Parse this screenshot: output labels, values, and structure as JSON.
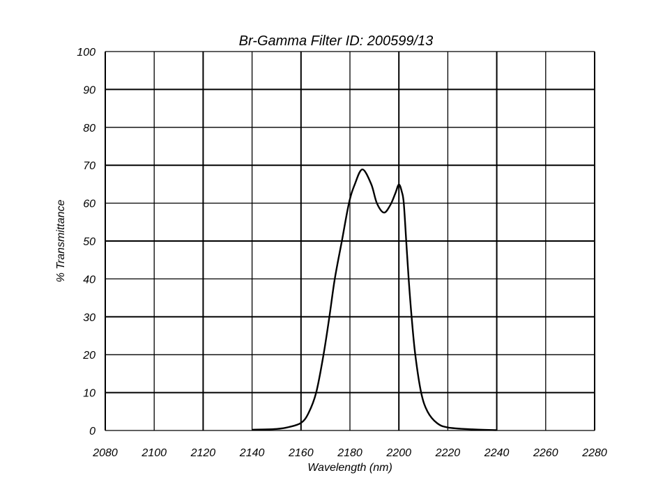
{
  "chart_data": {
    "type": "line",
    "title": "Br-Gamma Filter ID: 200599/13",
    "xlabel": "Wavelength (nm)",
    "ylabel": "% Transmittance",
    "xlim": [
      2080,
      2280
    ],
    "ylim": [
      0,
      100
    ],
    "xticks": [
      2080,
      2100,
      2120,
      2140,
      2160,
      2180,
      2200,
      2220,
      2240,
      2260,
      2280
    ],
    "yticks": [
      0,
      10,
      20,
      30,
      40,
      50,
      60,
      70,
      80,
      90,
      100
    ],
    "grid": true,
    "line_color": "#000000",
    "series": [
      {
        "x": [
          2140,
          2150,
          2155,
          2160,
          2163,
          2166.2,
          2169.2,
          2171.6,
          2173.8,
          2176.7,
          2179.6,
          2182,
          2185.1,
          2188.7,
          2191,
          2193.9,
          2196.5,
          2198.5,
          2200,
          2201.2,
          2202,
          2203,
          2204,
          2205.2,
          2206.7,
          2209.1,
          2211.7,
          2215.5,
          2220,
          2230,
          2240
        ],
        "y": [
          0.2,
          0.4,
          0.9,
          2,
          4.5,
          10,
          20,
          30,
          40,
          50,
          60,
          65,
          68.9,
          65,
          60,
          57.5,
          59.5,
          62.5,
          64.9,
          63,
          60,
          50,
          40,
          30,
          20,
          10,
          5,
          2,
          0.8,
          0.3,
          0.1
        ]
      }
    ]
  }
}
